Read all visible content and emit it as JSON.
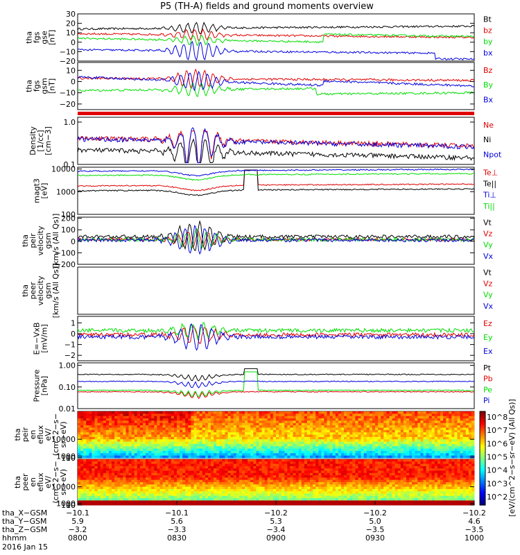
{
  "title": "P5 (TH-A) fields and ground moments overview",
  "colors": {
    "black": "#000000",
    "red": "#e00000",
    "green": "#00dd00",
    "blue": "#0000dd"
  },
  "chart_data": [
    {
      "id": "p1",
      "type": "line",
      "ylabel": [
        "tha",
        "fgs",
        "gse",
        "[nT]"
      ],
      "yticks": [
        {
          "v": 30,
          "t": "30"
        },
        {
          "v": 20,
          "t": "20"
        },
        {
          "v": 10,
          "t": "10"
        },
        {
          "v": 0,
          "t": "0"
        },
        {
          "v": -10,
          "t": "−10"
        },
        {
          "v": -20,
          "t": "−20"
        }
      ],
      "series": [
        {
          "name": "Bt",
          "color": "black"
        },
        {
          "name": "bz",
          "color": "red"
        },
        {
          "name": "by",
          "color": "green"
        },
        {
          "name": "bx",
          "color": "blue"
        }
      ]
    },
    {
      "id": "p2",
      "type": "line",
      "ylabel": [
        "tha",
        "fgs",
        "gsm",
        "[nT]"
      ],
      "yticks": [
        {
          "v": 10,
          "t": "10"
        },
        {
          "v": 0,
          "t": "0"
        },
        {
          "v": -10,
          "t": "−10"
        },
        {
          "v": -20,
          "t": "−20"
        }
      ],
      "series": [
        {
          "name": "Bz",
          "color": "red"
        },
        {
          "name": "By",
          "color": "green"
        },
        {
          "name": "Bx",
          "color": "blue"
        }
      ]
    },
    {
      "id": "p3",
      "type": "line",
      "ylabel": [
        "Density",
        "[1/cc]",
        "[cm−3]"
      ],
      "yticks": [
        {
          "v": 1.0,
          "t": "1.0"
        },
        {
          "v": 0.1,
          "t": "0.1"
        }
      ],
      "log": true,
      "series": [
        {
          "name": "Ne",
          "color": "red"
        },
        {
          "name": "Ni",
          "color": "black"
        },
        {
          "name": "Npot",
          "color": "blue"
        }
      ]
    },
    {
      "id": "p4",
      "type": "line",
      "ylabel": [
        "magt3",
        "[eV]"
      ],
      "yticks": [
        {
          "v": 10000,
          "t": "10000"
        },
        {
          "v": 1000,
          "t": "1000"
        },
        {
          "v": 100,
          "t": "100"
        }
      ],
      "log": true,
      "series": [
        {
          "name": "Te⊥",
          "color": "red"
        },
        {
          "name": "Te||",
          "color": "black"
        },
        {
          "name": "Ti⊥",
          "color": "blue"
        },
        {
          "name": "Ti||",
          "color": "green"
        }
      ]
    },
    {
      "id": "p5",
      "type": "line",
      "ylabel": [
        "tha",
        "peir",
        "velocity",
        "gsm",
        "[km/s (All Qs)]"
      ],
      "yticks": [
        {
          "v": 200,
          "t": "200"
        },
        {
          "v": 100,
          "t": "100"
        },
        {
          "v": 0,
          "t": "0"
        },
        {
          "v": -100,
          "t": "−100"
        },
        {
          "v": -200,
          "t": "−200"
        }
      ],
      "series": [
        {
          "name": "Vt",
          "color": "black"
        },
        {
          "name": "Vz",
          "color": "red"
        },
        {
          "name": "Vy",
          "color": "green"
        },
        {
          "name": "Vx",
          "color": "blue"
        }
      ]
    },
    {
      "id": "p6",
      "type": "line",
      "ylabel": [
        "tha",
        "peer",
        "velocity",
        "gsm",
        "[km/s (All Qs)]"
      ],
      "yticks": [],
      "series": [
        {
          "name": "Vt",
          "color": "black"
        },
        {
          "name": "Vz",
          "color": "red"
        },
        {
          "name": "Vy",
          "color": "green"
        },
        {
          "name": "Vx",
          "color": "blue"
        }
      ]
    },
    {
      "id": "p7",
      "type": "line",
      "ylabel": [
        "E=−VxB",
        "[mV/m]"
      ],
      "yticks": [
        {
          "v": 1,
          "t": "1"
        },
        {
          "v": 0,
          "t": "0"
        },
        {
          "v": -1,
          "t": "−1"
        },
        {
          "v": -2,
          "t": "−2"
        }
      ],
      "series": [
        {
          "name": "Ez",
          "color": "red"
        },
        {
          "name": "Ey",
          "color": "green"
        },
        {
          "name": "Ex",
          "color": "blue"
        }
      ]
    },
    {
      "id": "p8",
      "type": "line",
      "ylabel": [
        "Pressure",
        "[nPa]"
      ],
      "yticks": [
        {
          "v": 1.0,
          "t": "1.00"
        },
        {
          "v": 0.1,
          "t": "0.10"
        },
        {
          "v": 0.01,
          "t": "0.01"
        }
      ],
      "log": true,
      "series": [
        {
          "name": "Pt",
          "color": "black"
        },
        {
          "name": "Pb",
          "color": "red"
        },
        {
          "name": "Pe",
          "color": "green"
        },
        {
          "name": "Pi",
          "color": "blue"
        }
      ]
    },
    {
      "id": "p9",
      "type": "heatmap",
      "ylabel": [
        "tha",
        "peir",
        "en",
        "eflux",
        "eV/",
        "(cm^2−s−",
        "sr−eV)"
      ],
      "yticks": [
        {
          "v": 10000,
          "t": "10000"
        },
        {
          "v": 1000,
          "t": "1000"
        },
        {
          "v": 100,
          "t": "100"
        },
        {
          "v": 10,
          "t": "10"
        }
      ]
    },
    {
      "id": "p10",
      "type": "heatmap",
      "ylabel": [
        "tha",
        "peer",
        "en",
        "eflux",
        "eV/",
        "(cm^2−s−",
        "sr−eV)"
      ],
      "yticks": [
        {
          "v": 10000,
          "t": "10000"
        },
        {
          "v": 1000,
          "t": "1000"
        },
        {
          "v": 100,
          "t": "100"
        },
        {
          "v": 10,
          "t": "10"
        }
      ]
    }
  ],
  "colorbar": {
    "label": "[eV/(cm^2−s−sr−eV) (All Qs)]",
    "ticks": [
      "10^8",
      "10^7",
      "10^6",
      "10^5",
      "10^4",
      "10^3",
      "10^2"
    ]
  },
  "time_axis": {
    "rows": [
      {
        "label": "tha_X−GSM",
        "values": [
          "−10.1",
          "−10.1",
          "−10.2",
          "−10.2",
          "−10.2"
        ]
      },
      {
        "label": "tha_Y−GSM",
        "values": [
          "5.9",
          "5.6",
          "5.3",
          "5.0",
          "4.6"
        ]
      },
      {
        "label": "tha_Z−GSM",
        "values": [
          "−3.2",
          "−3.3",
          "−3.4",
          "−3.5",
          "−3.5"
        ]
      },
      {
        "label": "hhmm",
        "values": [
          "0800",
          "0830",
          "0900",
          "0930",
          "1000"
        ]
      }
    ],
    "date": "2016 Jan 15"
  }
}
